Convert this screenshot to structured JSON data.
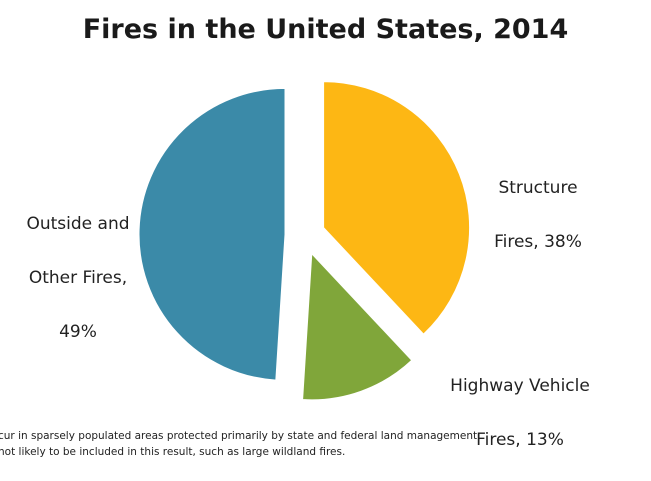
{
  "chart_data": {
    "type": "pie",
    "title": "Fires in the United States, 2014",
    "categories": [
      "Structure Fires",
      "Highway Vehicle Fires",
      "Outside and Other Fires"
    ],
    "values": [
      38,
      13,
      49
    ],
    "unit": "%",
    "exploded": true,
    "labels": [
      {
        "line1": "Structure",
        "line2": "Fires, 38%"
      },
      {
        "line1": "Highway Vehicle",
        "line2": "Fires, 13%"
      },
      {
        "line1": "Outside and",
        "line2": "Other Fires,",
        "line3": "49%"
      }
    ],
    "colors": [
      "#FDB714",
      "#80A63A",
      "#3B8AA8"
    ]
  },
  "footnote": {
    "line1": "cur in sparsely populated areas protected primarily by state and federal land management",
    "line2": "not likely to be included in this result, such as large wildland fires."
  }
}
